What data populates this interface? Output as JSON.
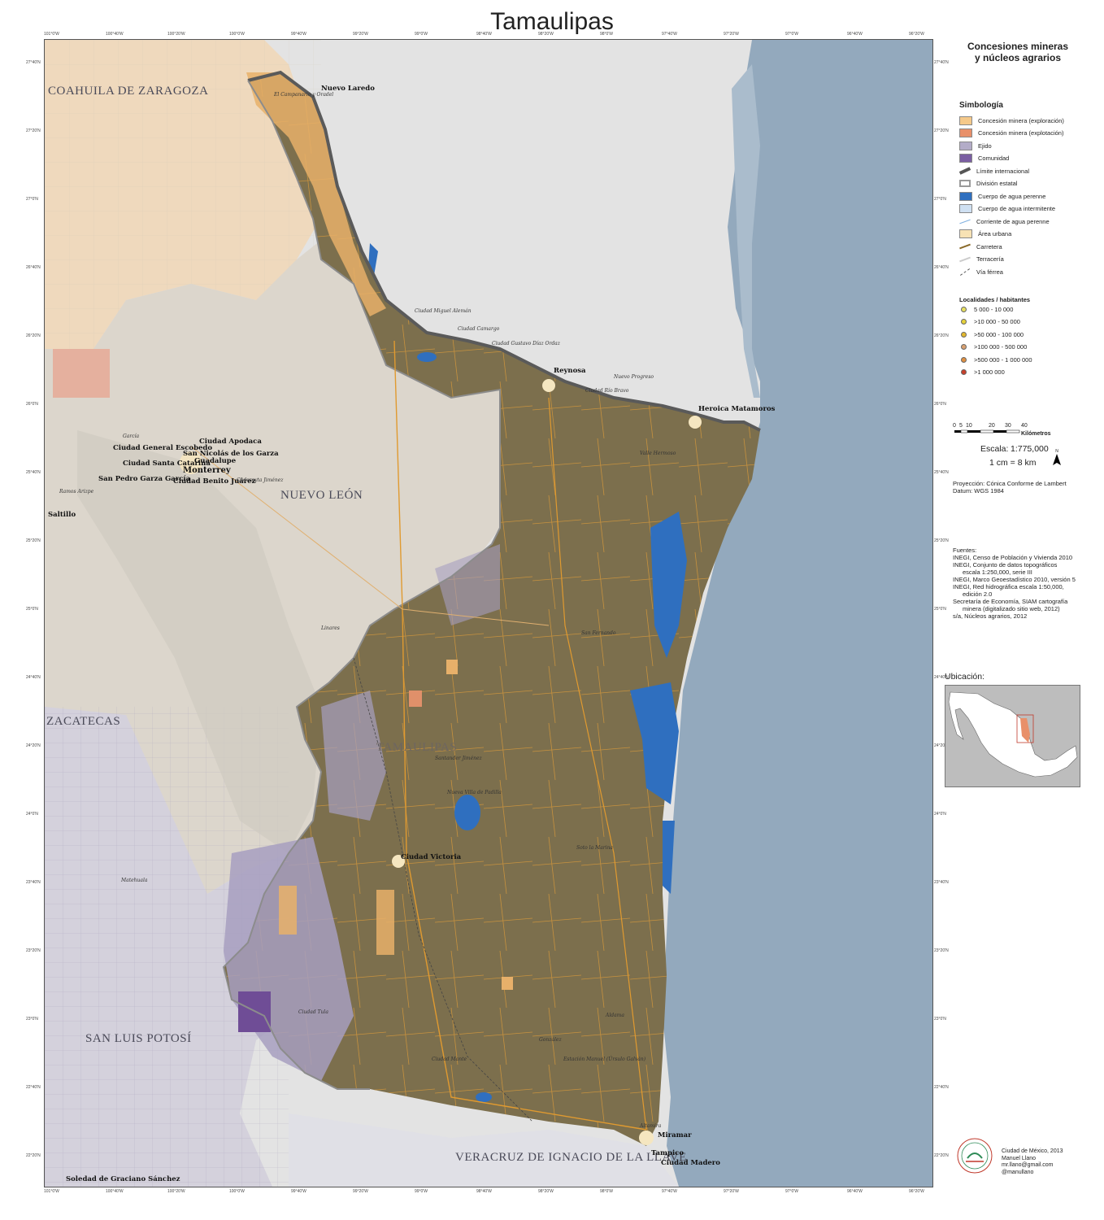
{
  "title": "Tamaulipas",
  "panel": {
    "subtitle_line1": "Concesiones mineras",
    "subtitle_line2": "y núcleos agrarios",
    "symbology_heading": "Simbología",
    "legend": [
      {
        "label": "Concesión minera (exploración)",
        "icon": "fill-swatch",
        "color": "#f5c98a"
      },
      {
        "label": "Concesión minera (explotación)",
        "icon": "fill-swatch",
        "color": "#e8906a"
      },
      {
        "label": "Ejido",
        "icon": "fill-swatch",
        "color": "#b3acc8"
      },
      {
        "label": "Comunidad",
        "icon": "fill-swatch",
        "color": "#7a5ea2"
      },
      {
        "label": "Límite internacional",
        "icon": "thick-line",
        "color": "#555555"
      },
      {
        "label": "División estatal",
        "icon": "outline-line",
        "color": "#9a9a9a"
      },
      {
        "label": "Cuerpo de agua perenne",
        "icon": "fill-swatch",
        "color": "#2f6fbf"
      },
      {
        "label": "Cuerpo de agua intermitente",
        "icon": "fill-swatch",
        "color": "#cfe0f2"
      },
      {
        "label": "Corriente de agua perenne",
        "icon": "thin-line",
        "color": "#7fb0e0"
      },
      {
        "label": "Área urbana",
        "icon": "fill-swatch",
        "color": "#f7e2b4"
      },
      {
        "label": "Carretera",
        "icon": "road-line",
        "color": "#8a6a2a"
      },
      {
        "label": "Terracería",
        "icon": "light-line",
        "color": "#cccccc"
      },
      {
        "label": "Vía férrea",
        "icon": "rail-line",
        "color": "#555555"
      }
    ],
    "localities_heading": "Localidades / habitantes",
    "localities": [
      {
        "label": "5 000 - 10 000",
        "color": "#e8e060"
      },
      {
        "label": ">10 000 - 50 000",
        "color": "#e6d23a"
      },
      {
        "label": ">50 000 - 100 000",
        "color": "#e3b82e"
      },
      {
        "label": ">100 000 - 500 000",
        "color": "#d9a070"
      },
      {
        "label": ">500 000 - 1 000 000",
        "color": "#e09040"
      },
      {
        "label": ">1 000 000",
        "color": "#c8402a"
      }
    ],
    "scale_ticks": [
      "0",
      "5",
      "10",
      "20",
      "30",
      "40"
    ],
    "scale_unit": "Kilómetros",
    "scale_label": "Escala:",
    "scale_value": "1:775,000",
    "scale_equiv": "1 cm = 8 km",
    "north_letter": "N",
    "projection": "Proyección: Cónica Conforme de Lambert",
    "datum": "Datum: WGS 1984",
    "sources": [
      "Fuentes:",
      "INEGI, Censo de Población y Vivienda 2010",
      "INEGI, Conjunto de datos topográficos",
      "escala 1:250,000, serie III",
      "INEGI, Marco Geoestadístico 2010, versión 5",
      "INEGI, Red hidrográfica escala 1:50,000,",
      "edición 2.0",
      "Secretaría de Economía, SIAM cartografía",
      "minera (digitalizado sitio web, 2012)",
      "s/a, Núcleos agrarios, 2012"
    ],
    "location_heading": "Ubicación:",
    "credits": [
      "Ciudad de México, 2013",
      "Manuel Llano",
      "mr.llano@gmail.com",
      "@manullano"
    ]
  },
  "map": {
    "states": [
      "COAHUILA DE ZARAGOZA",
      "NUEVO LEÓN",
      "ZACATECAS",
      "SAN LUIS POTOSÍ",
      "TAMAULIPAS",
      "VERACRUZ DE IGNACIO DE LA LLAVE"
    ],
    "cities": {
      "nuevo_laredo": "Nuevo Laredo",
      "reynosa": "Reynosa",
      "matamoros": "Heroica Matamoros",
      "monterrey": "Monterrey",
      "saltillo": "Saltillo",
      "apodaca": "Ciudad Apodaca",
      "escobedo": "Ciudad General Escobedo",
      "san_nicolas": "San Nicolás de los Garza",
      "santa_catarina": "Ciudad Santa Catarina",
      "guadalupe": "Guadalupe",
      "garza_garcia": "San Pedro Garza García",
      "benito_juarez": "Ciudad Benito Juárez",
      "victoria": "Ciudad Victoria",
      "miramar": "Miramar",
      "tampico": "Tampico",
      "madero": "Ciudad Madero",
      "soledad": "Soledad de Graciano Sánchez",
      "matehuala": "Matehuala",
      "linares": "Linares",
      "garcia": "García",
      "ramos_arizpe": "Ramos Arizpe",
      "cadereyta": "Cadereyta Jiménez",
      "miguel_aleman": "Ciudad Miguel Alemán",
      "camargo": "Ciudad Camargo",
      "diaz_ordaz": "Ciudad Gustavo Díaz Ordaz",
      "rio_bravo": "Ciudad Río Bravo",
      "nuevo_progreso": "Nuevo Progreso",
      "valle_hermoso": "Valle Hermoso",
      "san_fernando": "San Fernando",
      "nueva_villa": "Nueva Villa de Padilla",
      "soto_la_marina": "Soto la Marina",
      "el_campanario": "El Campanario y Oradel",
      "ciudad_mante": "Ciudad Mante",
      "gonzalez": "González",
      "altamira": "Altamira",
      "aldama": "Aldama",
      "estacion_manuel": "Estación Manuel (Úrsulo Galván)",
      "tula": "Ciudad Tula",
      "santander": "Santander Jiménez"
    },
    "top_ticks": [
      "101°0'W",
      "100°40'W",
      "100°20'W",
      "100°0'W",
      "99°40'W",
      "99°20'W",
      "99°0'W",
      "98°40'W",
      "98°20'W",
      "98°0'W",
      "97°40'W",
      "97°20'W",
      "97°0'W",
      "96°40'W",
      "96°20'W"
    ],
    "side_ticks": [
      "27°40'N",
      "27°20'N",
      "27°0'N",
      "26°40'N",
      "26°20'N",
      "26°0'N",
      "25°40'N",
      "25°20'N",
      "25°0'N",
      "24°40'N",
      "24°20'N",
      "24°0'N",
      "23°40'N",
      "23°20'N",
      "23°0'N",
      "22°40'N",
      "22°20'N"
    ]
  }
}
